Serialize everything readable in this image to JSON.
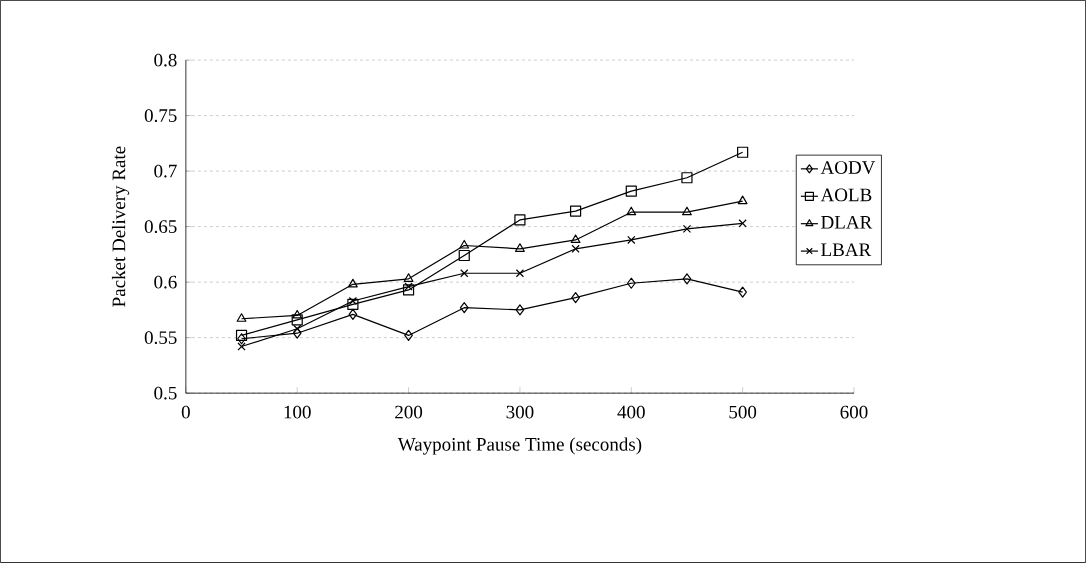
{
  "chart_data": {
    "type": "line",
    "xlabel": "Waypoint Pause Time (seconds)",
    "ylabel": "Packet Delivery Rate",
    "x": [
      50,
      100,
      150,
      200,
      250,
      300,
      350,
      400,
      450,
      500
    ],
    "series": [
      {
        "name": "AODV",
        "color": "#000000",
        "marker": "diamond",
        "values": [
          0.549,
          0.554,
          0.571,
          0.552,
          0.577,
          0.575,
          0.586,
          0.599,
          0.603,
          0.591
        ]
      },
      {
        "name": "AOLB",
        "color": "#000000",
        "marker": "square",
        "values": [
          0.552,
          0.566,
          0.58,
          0.593,
          0.624,
          0.656,
          0.664,
          0.682,
          0.694,
          0.717
        ]
      },
      {
        "name": "DLAR",
        "color": "#000000",
        "marker": "triangle",
        "values": [
          0.567,
          0.57,
          0.598,
          0.603,
          0.633,
          0.63,
          0.638,
          0.663,
          0.663,
          0.673
        ]
      },
      {
        "name": "LBAR",
        "color": "#000000",
        "marker": "cross",
        "values": [
          0.542,
          0.558,
          0.583,
          0.596,
          0.608,
          0.608,
          0.63,
          0.638,
          0.648,
          0.653
        ]
      }
    ],
    "xlim": [
      0,
      600
    ],
    "xticks": [
      0,
      100,
      200,
      300,
      400,
      500,
      600
    ],
    "ylim": [
      0.5,
      0.8
    ],
    "yticks": [
      0.5,
      0.55,
      0.6,
      0.65,
      0.7,
      0.75,
      0.8
    ],
    "grid": "y",
    "legend": "right",
    "line_style": "solid"
  }
}
